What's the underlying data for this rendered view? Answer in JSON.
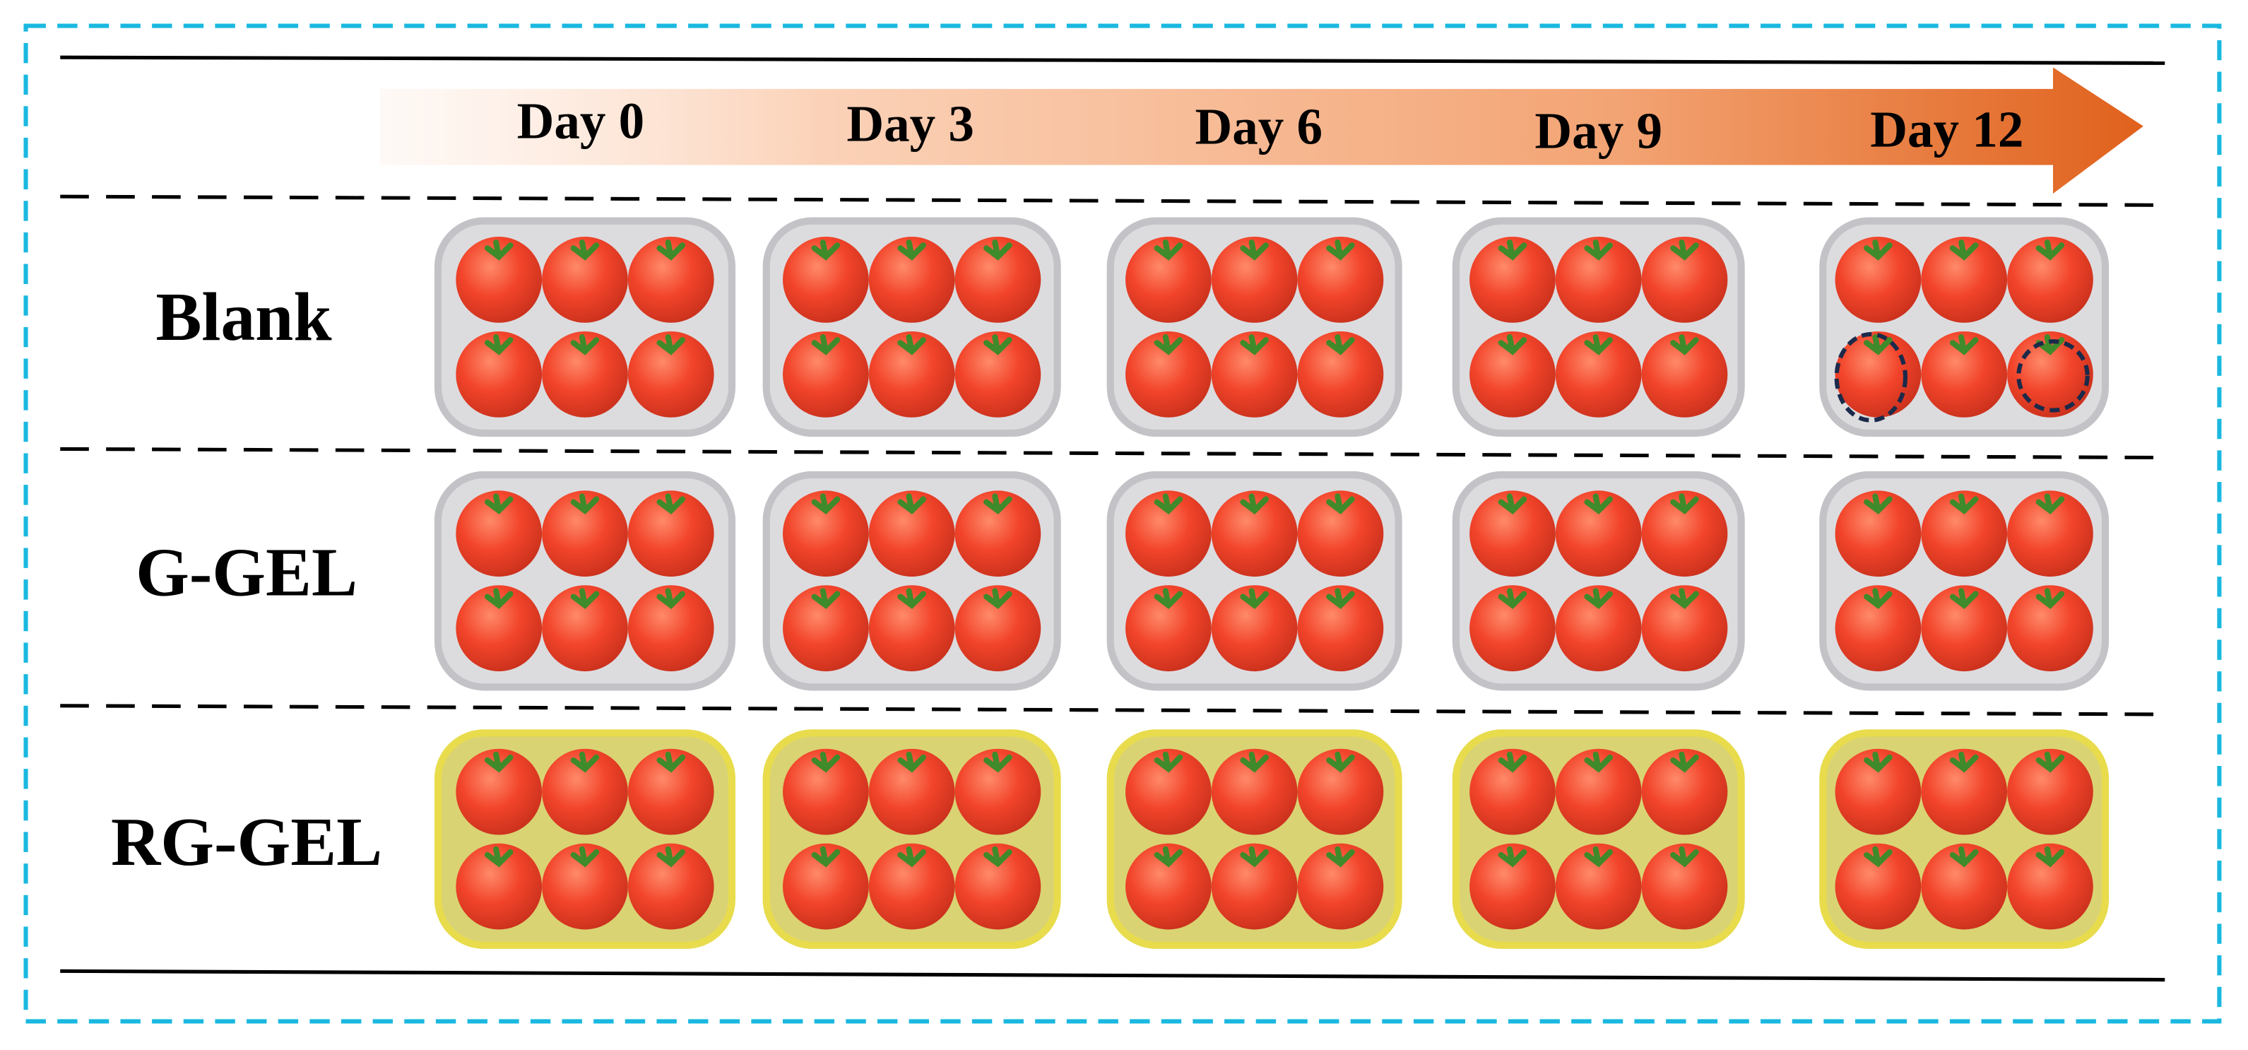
{
  "header": {
    "days": [
      "Day 0",
      "Day 3",
      "Day 6",
      "Day 9",
      "Day 12"
    ]
  },
  "rows": [
    {
      "label": "Blank"
    },
    {
      "label": "G-GEL"
    },
    {
      "label": "RG-GEL"
    }
  ]
}
